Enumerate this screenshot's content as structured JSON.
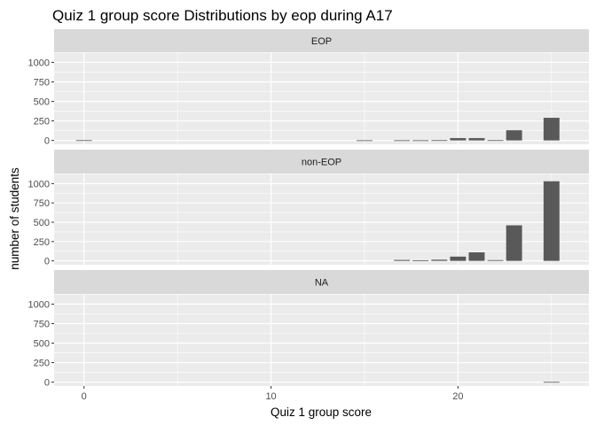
{
  "chart_data": {
    "type": "bar",
    "title": "Quiz 1 group score Distributions by eop during A17",
    "xlabel": "Quiz 1 group score",
    "ylabel": "number of students",
    "xlim": [
      -1.6,
      27
    ],
    "ylim": [
      -50,
      1130
    ],
    "x_ticks": [
      0,
      10,
      20
    ],
    "y_ticks": [
      0,
      250,
      500,
      750,
      1000
    ],
    "bin_width": 0.85,
    "grid": true,
    "legend": "none",
    "colors": {
      "bar": "#595959",
      "panel_background": "#ebebeb",
      "strip_background": "#d9d9d9",
      "grid": "#ffffff"
    },
    "panels": [
      {
        "label": "EOP",
        "bars": [
          {
            "x": 0,
            "y": 3
          },
          {
            "x": 15,
            "y": 2
          },
          {
            "x": 17,
            "y": 2
          },
          {
            "x": 18,
            "y": 2
          },
          {
            "x": 19,
            "y": 3
          },
          {
            "x": 20,
            "y": 30
          },
          {
            "x": 21,
            "y": 30
          },
          {
            "x": 22,
            "y": 3
          },
          {
            "x": 23,
            "y": 130
          },
          {
            "x": 25,
            "y": 290
          }
        ]
      },
      {
        "label": "non-EOP",
        "bars": [
          {
            "x": 17,
            "y": 12
          },
          {
            "x": 18,
            "y": 5
          },
          {
            "x": 19,
            "y": 15
          },
          {
            "x": 20,
            "y": 55
          },
          {
            "x": 21,
            "y": 110
          },
          {
            "x": 22,
            "y": 10
          },
          {
            "x": 23,
            "y": 460
          },
          {
            "x": 25,
            "y": 1030
          }
        ]
      },
      {
        "label": "NA",
        "bars": [
          {
            "x": 25,
            "y": 3
          }
        ]
      }
    ]
  }
}
